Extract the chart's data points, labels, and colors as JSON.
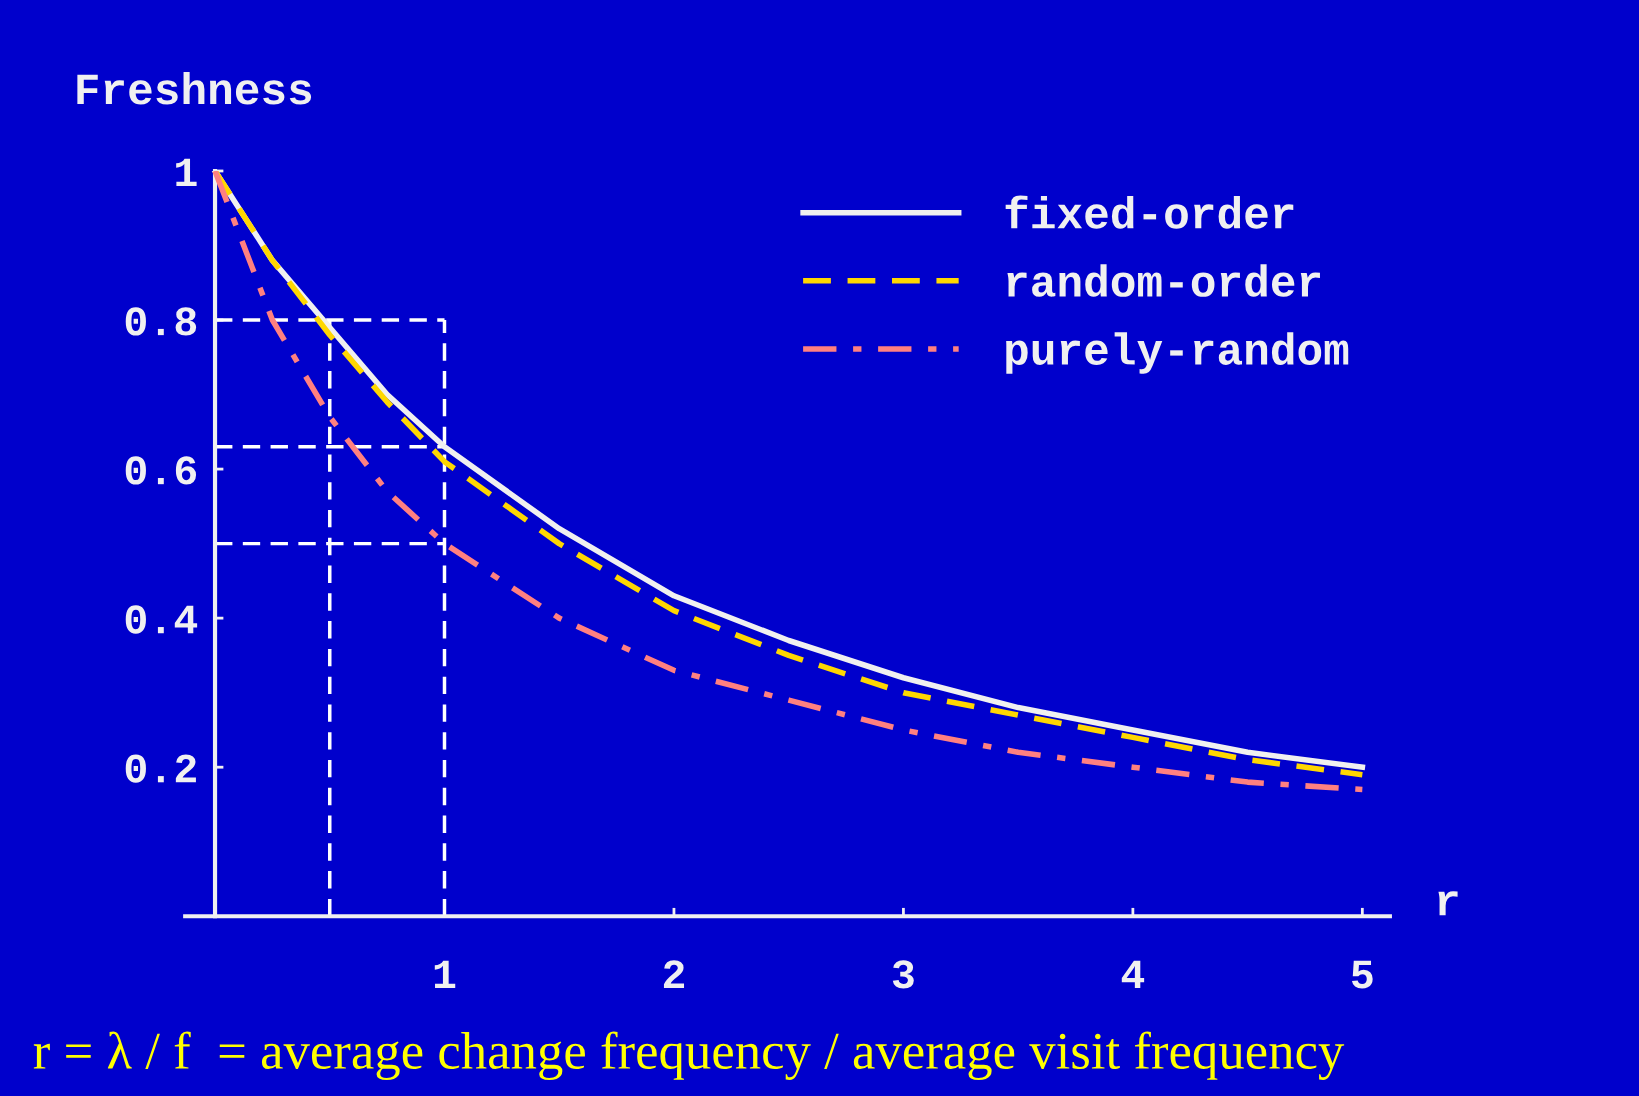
{
  "chart_data": {
    "type": "line",
    "ylabel": "Freshness",
    "xlabel": "r",
    "x": [
      0,
      0.25,
      0.5,
      0.75,
      1,
      1.5,
      2,
      2.5,
      3,
      3.5,
      4,
      4.5,
      5
    ],
    "series": [
      {
        "name": "fixed-order",
        "color": "#f0f0f0",
        "line_style": "solid",
        "values": [
          1,
          0.88,
          0.79,
          0.7,
          0.63,
          0.52,
          0.43,
          0.37,
          0.32,
          0.28,
          0.25,
          0.22,
          0.2
        ]
      },
      {
        "name": "random-order",
        "color": "#ffd700",
        "line_style": "dashed",
        "values": [
          1,
          0.88,
          0.78,
          0.69,
          0.61,
          0.5,
          0.41,
          0.35,
          0.3,
          0.27,
          0.24,
          0.21,
          0.19
        ]
      },
      {
        "name": "purely-random",
        "color": "#ff8080",
        "line_style": "dashdot",
        "values": [
          1,
          0.8,
          0.67,
          0.57,
          0.5,
          0.4,
          0.33,
          0.29,
          0.25,
          0.22,
          0.2,
          0.18,
          0.17
        ]
      }
    ],
    "xlim": [
      -0.13,
      5.12
    ],
    "ylim": [
      0,
      1.0
    ],
    "xticks": [
      1,
      2,
      3,
      4,
      5
    ],
    "yticks": [
      0.2,
      0.4,
      0.6,
      0.8,
      1
    ],
    "ref_lines": [
      {
        "axis": "x",
        "value": 0.5,
        "color": "#ffffff",
        "line_style": "dashed"
      },
      {
        "axis": "x",
        "value": 1,
        "color": "#ffffff",
        "line_style": "dashed"
      },
      {
        "axis": "y",
        "value": 0.8,
        "color": "#ffffff",
        "line_style": "dashed"
      },
      {
        "axis": "y",
        "value": 0.63,
        "color": "#ffffff",
        "line_style": "dashed"
      },
      {
        "axis": "y",
        "value": 0.5,
        "color": "#ffffff",
        "line_style": "dashed"
      }
    ],
    "annotations": [
      "r = λ / f  = average change frequency / average visit frequency"
    ],
    "legend": "top right",
    "grid": false,
    "marker": "none"
  }
}
